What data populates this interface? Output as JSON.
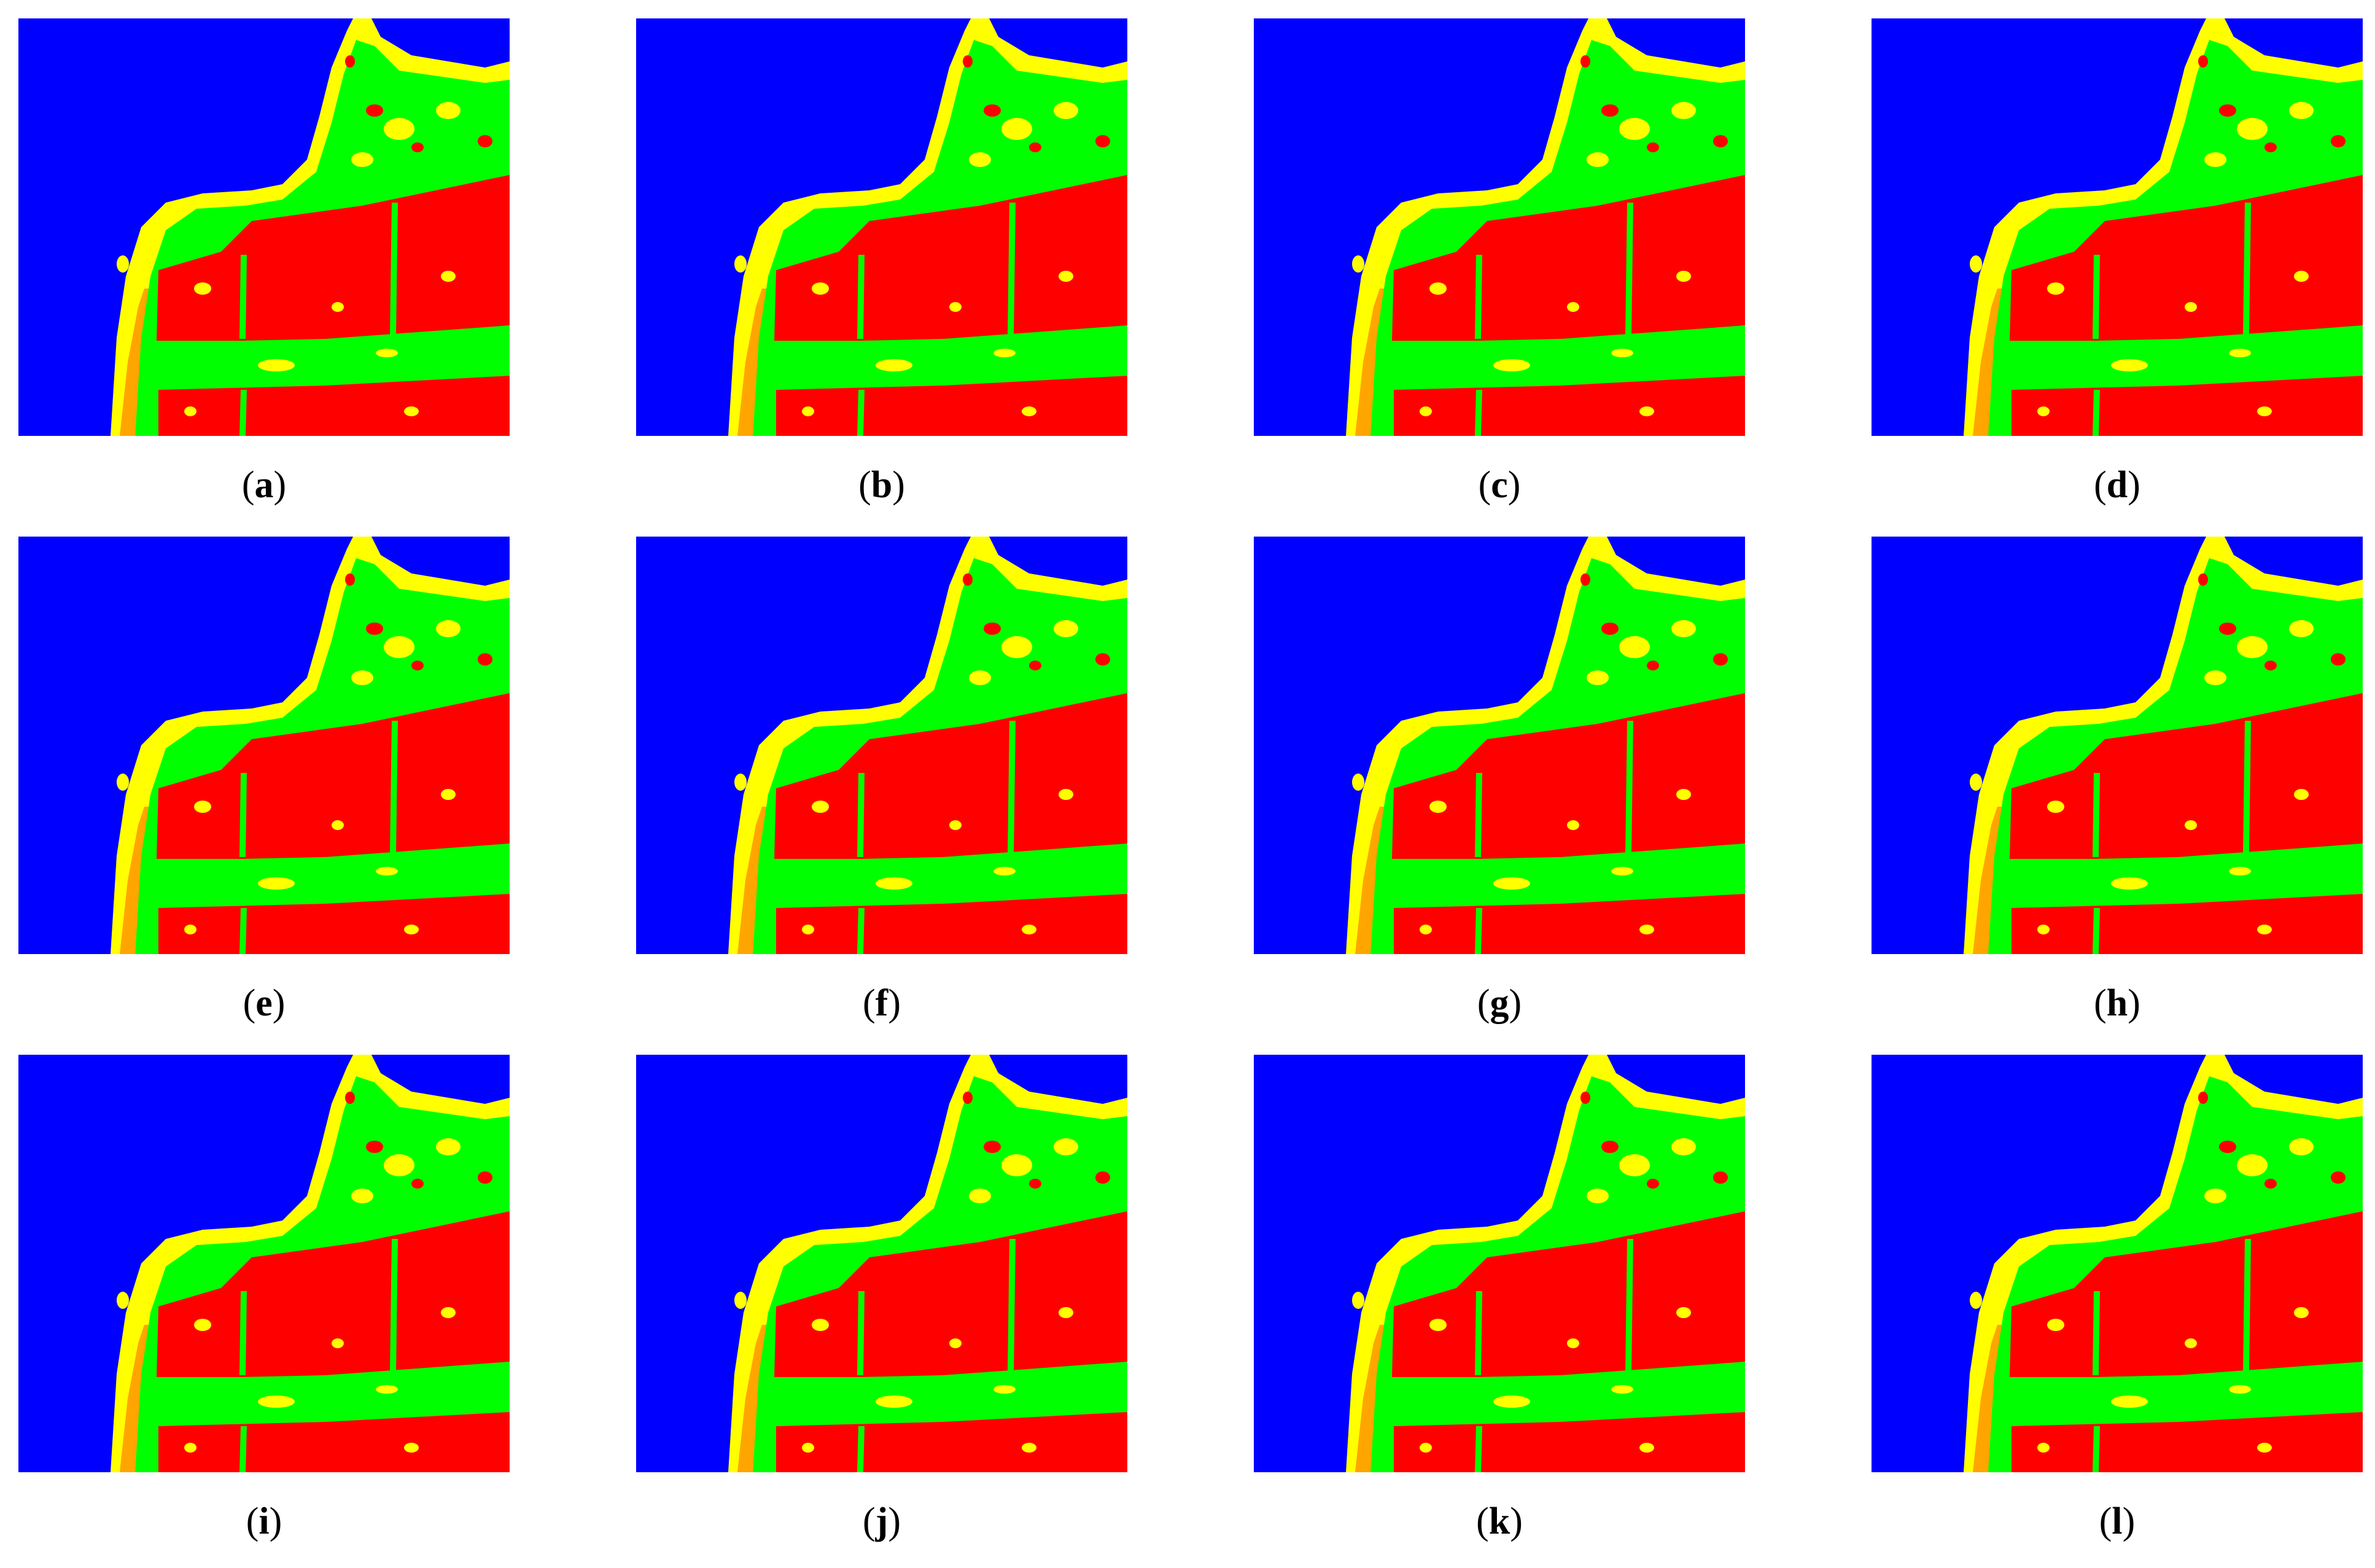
{
  "figure": {
    "panels": [
      {
        "id": "a",
        "label": "a"
      },
      {
        "id": "b",
        "label": "b"
      },
      {
        "id": "c",
        "label": "c"
      },
      {
        "id": "d",
        "label": "d"
      },
      {
        "id": "e",
        "label": "e"
      },
      {
        "id": "f",
        "label": "f"
      },
      {
        "id": "g",
        "label": "g"
      },
      {
        "id": "h",
        "label": "h"
      },
      {
        "id": "i",
        "label": "i"
      },
      {
        "id": "j",
        "label": "j"
      },
      {
        "id": "k",
        "label": "k"
      },
      {
        "id": "l",
        "label": "l"
      }
    ],
    "class_colors": {
      "water": "#0000ff",
      "urban": "#ff0000",
      "vegetation": "#00ff00",
      "mixed": "#ffff00",
      "bare": "#ffa500"
    }
  }
}
